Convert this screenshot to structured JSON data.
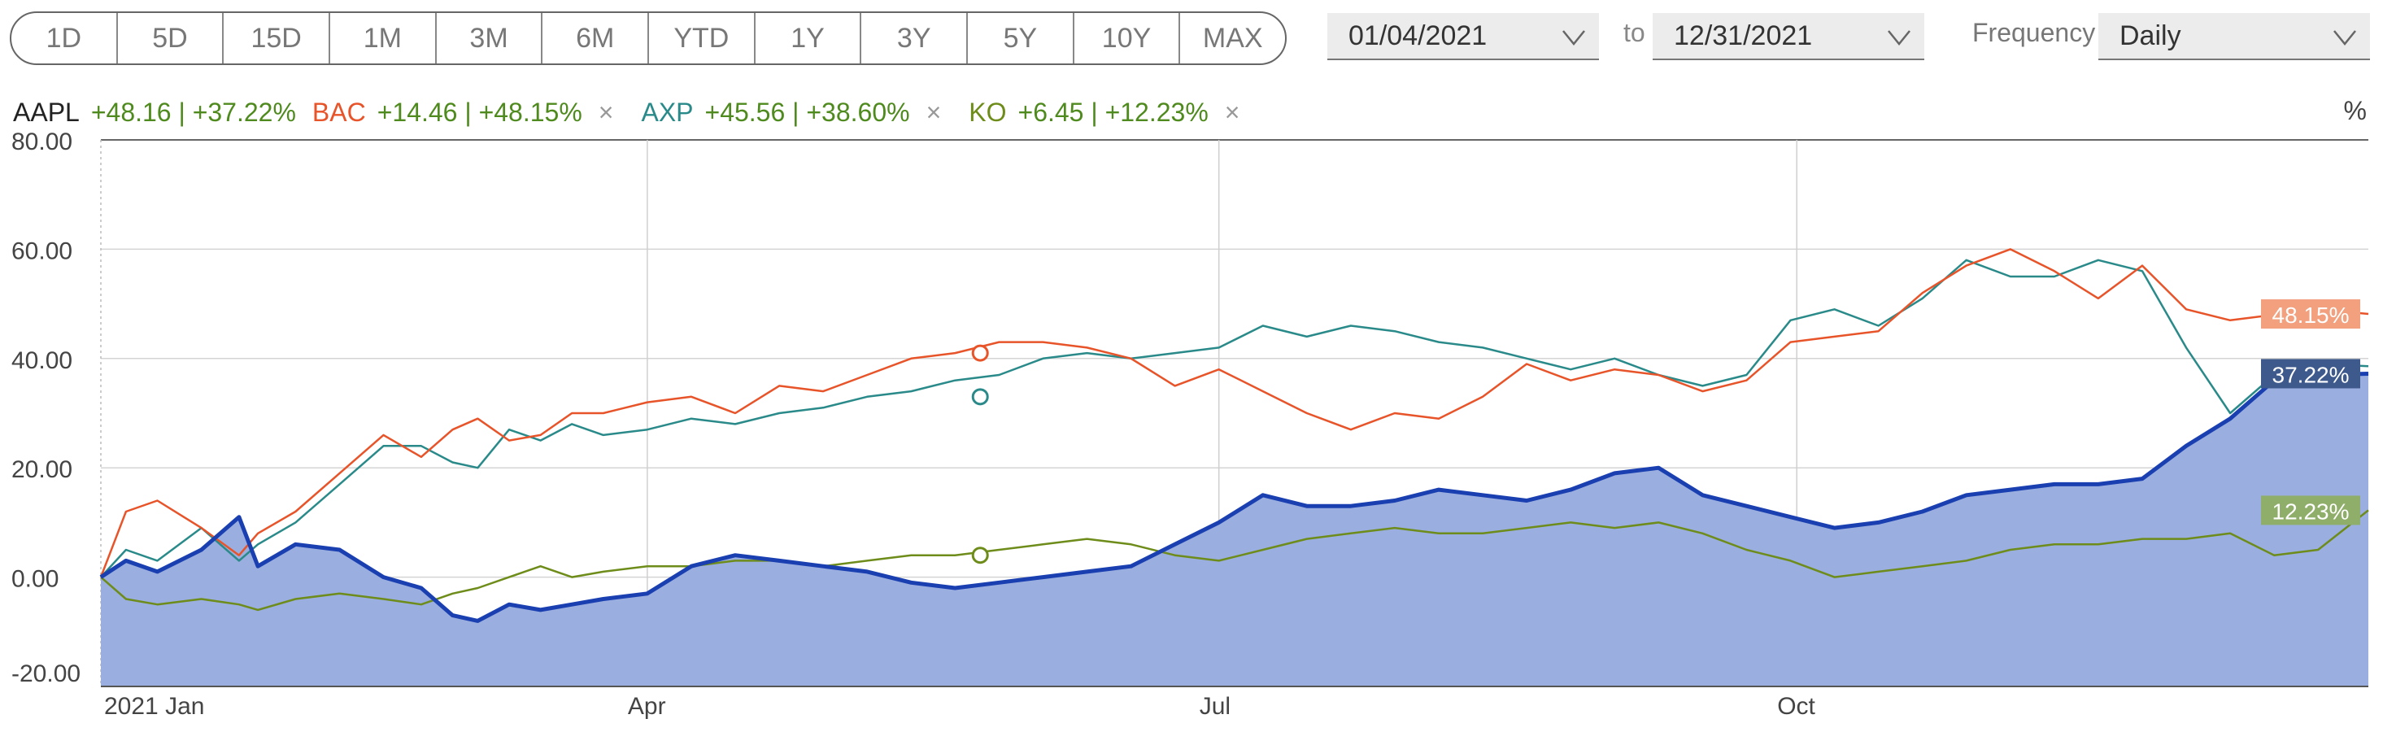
{
  "ranges": [
    "1D",
    "5D",
    "15D",
    "1M",
    "3M",
    "6M",
    "YTD",
    "1Y",
    "3Y",
    "5Y",
    "10Y",
    "MAX"
  ],
  "date_from": "01/04/2021",
  "to_label": "to",
  "date_to": "12/31/2021",
  "frequency_label": "Frequency",
  "frequency_value": "Daily",
  "legend": [
    {
      "symbol": "AAPL",
      "change": "+48.16 | +37.22%",
      "color": "#222222",
      "removable": false
    },
    {
      "symbol": "BAC",
      "change": "+14.46 | +48.15%",
      "color": "#e8542a",
      "removable": true,
      "remove": "×"
    },
    {
      "symbol": "AXP",
      "change": "+45.56 | +38.60%",
      "color": "#2a8a8a",
      "removable": true,
      "remove": "×"
    },
    {
      "symbol": "KO",
      "change": "+6.45 | +12.23%",
      "color": "#6e8c1a",
      "removable": true,
      "remove": "×"
    }
  ],
  "unit_label": "%",
  "colors": {
    "aapl": "#1a3fb0",
    "aapl_fill": "#9aaedf",
    "bac": "#e8542a",
    "axp": "#2a8a8a",
    "ko": "#6e8c1a"
  },
  "chart_data": {
    "type": "line",
    "x_range": [
      "2021-01-04",
      "2021-12-31"
    ],
    "x_tick_labels": [
      "2021 Jan",
      "Apr",
      "Jul",
      "Oct"
    ],
    "x_ticks": [
      "2021-01-04",
      "2021-04-01",
      "2021-07-01",
      "2021-10-01"
    ],
    "ylim": [
      -20,
      80
    ],
    "y_ticks": [
      -20,
      0,
      20,
      40,
      60,
      80
    ],
    "y_tick_labels": [
      "-20.00",
      "0.00",
      "20.00",
      "40.00",
      "60.00",
      "80.00"
    ],
    "grid": true,
    "series": [
      {
        "name": "AAPL",
        "end_label": "37.22%",
        "x": [
          "2021-01-04",
          "2021-01-08",
          "2021-01-13",
          "2021-01-20",
          "2021-01-26",
          "2021-01-29",
          "2021-02-04",
          "2021-02-11",
          "2021-02-18",
          "2021-02-24",
          "2021-03-01",
          "2021-03-05",
          "2021-03-10",
          "2021-03-15",
          "2021-03-20",
          "2021-03-25",
          "2021-04-01",
          "2021-04-08",
          "2021-04-15",
          "2021-04-22",
          "2021-04-29",
          "2021-05-06",
          "2021-05-13",
          "2021-05-20",
          "2021-05-27",
          "2021-06-03",
          "2021-06-10",
          "2021-06-17",
          "2021-06-24",
          "2021-07-01",
          "2021-07-08",
          "2021-07-15",
          "2021-07-22",
          "2021-07-29",
          "2021-08-05",
          "2021-08-12",
          "2021-08-19",
          "2021-08-26",
          "2021-09-02",
          "2021-09-09",
          "2021-09-16",
          "2021-09-23",
          "2021-09-30",
          "2021-10-07",
          "2021-10-14",
          "2021-10-21",
          "2021-10-28",
          "2021-11-04",
          "2021-11-11",
          "2021-11-18",
          "2021-11-25",
          "2021-12-02",
          "2021-12-09",
          "2021-12-16",
          "2021-12-23",
          "2021-12-31"
        ],
        "y": [
          0,
          3,
          1,
          5,
          11,
          2,
          6,
          5,
          0,
          -2,
          -7,
          -8,
          -5,
          -6,
          -5,
          -4,
          -3,
          2,
          4,
          3,
          2,
          1,
          -1,
          -2,
          -1,
          0,
          1,
          2,
          6,
          10,
          15,
          13,
          13,
          14,
          16,
          15,
          14,
          16,
          19,
          20,
          15,
          13,
          11,
          9,
          10,
          12,
          15,
          16,
          17,
          17,
          18,
          24,
          29,
          36,
          37,
          37.22
        ]
      },
      {
        "name": "BAC",
        "end_label": "48.15%",
        "x": [
          "2021-01-04",
          "2021-01-08",
          "2021-01-13",
          "2021-01-20",
          "2021-01-26",
          "2021-01-29",
          "2021-02-04",
          "2021-02-11",
          "2021-02-18",
          "2021-02-24",
          "2021-03-01",
          "2021-03-05",
          "2021-03-10",
          "2021-03-15",
          "2021-03-20",
          "2021-03-25",
          "2021-04-01",
          "2021-04-08",
          "2021-04-15",
          "2021-04-22",
          "2021-04-29",
          "2021-05-06",
          "2021-05-13",
          "2021-05-20",
          "2021-05-27",
          "2021-06-03",
          "2021-06-10",
          "2021-06-17",
          "2021-06-24",
          "2021-07-01",
          "2021-07-08",
          "2021-07-15",
          "2021-07-22",
          "2021-07-29",
          "2021-08-05",
          "2021-08-12",
          "2021-08-19",
          "2021-08-26",
          "2021-09-02",
          "2021-09-09",
          "2021-09-16",
          "2021-09-23",
          "2021-09-30",
          "2021-10-07",
          "2021-10-14",
          "2021-10-21",
          "2021-10-28",
          "2021-11-04",
          "2021-11-11",
          "2021-11-18",
          "2021-11-25",
          "2021-12-02",
          "2021-12-09",
          "2021-12-16",
          "2021-12-23",
          "2021-12-31"
        ],
        "y": [
          0,
          12,
          14,
          9,
          4,
          8,
          12,
          19,
          26,
          22,
          27,
          29,
          25,
          26,
          30,
          30,
          32,
          33,
          30,
          35,
          34,
          37,
          40,
          41,
          43,
          43,
          42,
          40,
          35,
          38,
          34,
          30,
          27,
          30,
          29,
          33,
          39,
          36,
          38,
          37,
          34,
          36,
          43,
          44,
          45,
          52,
          57,
          60,
          56,
          51,
          57,
          49,
          47,
          48,
          49,
          48.15
        ]
      },
      {
        "name": "AXP",
        "end_label": "",
        "x": [
          "2021-01-04",
          "2021-01-08",
          "2021-01-13",
          "2021-01-20",
          "2021-01-26",
          "2021-01-29",
          "2021-02-04",
          "2021-02-11",
          "2021-02-18",
          "2021-02-24",
          "2021-03-01",
          "2021-03-05",
          "2021-03-10",
          "2021-03-15",
          "2021-03-20",
          "2021-03-25",
          "2021-04-01",
          "2021-04-08",
          "2021-04-15",
          "2021-04-22",
          "2021-04-29",
          "2021-05-06",
          "2021-05-13",
          "2021-05-20",
          "2021-05-27",
          "2021-06-03",
          "2021-06-10",
          "2021-06-17",
          "2021-06-24",
          "2021-07-01",
          "2021-07-08",
          "2021-07-15",
          "2021-07-22",
          "2021-07-29",
          "2021-08-05",
          "2021-08-12",
          "2021-08-19",
          "2021-08-26",
          "2021-09-02",
          "2021-09-09",
          "2021-09-16",
          "2021-09-23",
          "2021-09-30",
          "2021-10-07",
          "2021-10-14",
          "2021-10-21",
          "2021-10-28",
          "2021-11-04",
          "2021-11-11",
          "2021-11-18",
          "2021-11-25",
          "2021-12-02",
          "2021-12-09",
          "2021-12-16",
          "2021-12-23",
          "2021-12-31"
        ],
        "y": [
          0,
          5,
          3,
          9,
          3,
          6,
          10,
          17,
          24,
          24,
          21,
          20,
          27,
          25,
          28,
          26,
          27,
          29,
          28,
          30,
          31,
          33,
          34,
          36,
          37,
          40,
          41,
          40,
          41,
          42,
          46,
          44,
          46,
          45,
          43,
          42,
          40,
          38,
          40,
          37,
          35,
          37,
          47,
          49,
          46,
          51,
          58,
          55,
          55,
          58,
          56,
          42,
          30,
          37,
          39,
          38.6
        ]
      },
      {
        "name": "KO",
        "end_label": "12.23%",
        "x": [
          "2021-01-04",
          "2021-01-08",
          "2021-01-13",
          "2021-01-20",
          "2021-01-26",
          "2021-01-29",
          "2021-02-04",
          "2021-02-11",
          "2021-02-18",
          "2021-02-24",
          "2021-03-01",
          "2021-03-05",
          "2021-03-10",
          "2021-03-15",
          "2021-03-20",
          "2021-03-25",
          "2021-04-01",
          "2021-04-08",
          "2021-04-15",
          "2021-04-22",
          "2021-04-29",
          "2021-05-06",
          "2021-05-13",
          "2021-05-20",
          "2021-05-27",
          "2021-06-03",
          "2021-06-10",
          "2021-06-17",
          "2021-06-24",
          "2021-07-01",
          "2021-07-08",
          "2021-07-15",
          "2021-07-22",
          "2021-07-29",
          "2021-08-05",
          "2021-08-12",
          "2021-08-19",
          "2021-08-26",
          "2021-09-02",
          "2021-09-09",
          "2021-09-16",
          "2021-09-23",
          "2021-09-30",
          "2021-10-07",
          "2021-10-14",
          "2021-10-21",
          "2021-10-28",
          "2021-11-04",
          "2021-11-11",
          "2021-11-18",
          "2021-11-25",
          "2021-12-02",
          "2021-12-09",
          "2021-12-16",
          "2021-12-23",
          "2021-12-31"
        ],
        "y": [
          0,
          -4,
          -5,
          -4,
          -5,
          -6,
          -4,
          -3,
          -4,
          -5,
          -3,
          -2,
          0,
          2,
          0,
          1,
          2,
          2,
          3,
          3,
          2,
          3,
          4,
          4,
          5,
          6,
          7,
          6,
          4,
          3,
          5,
          7,
          8,
          9,
          8,
          8,
          9,
          10,
          9,
          10,
          8,
          5,
          3,
          0,
          1,
          2,
          3,
          5,
          6,
          6,
          7,
          7,
          8,
          4,
          5,
          12.23
        ]
      }
    ],
    "markers": [
      {
        "series": "BAC",
        "x": "2021-05-24",
        "y": 41
      },
      {
        "series": "AXP",
        "x": "2021-05-24",
        "y": 33
      },
      {
        "series": "KO",
        "x": "2021-05-24",
        "y": 4
      }
    ]
  }
}
